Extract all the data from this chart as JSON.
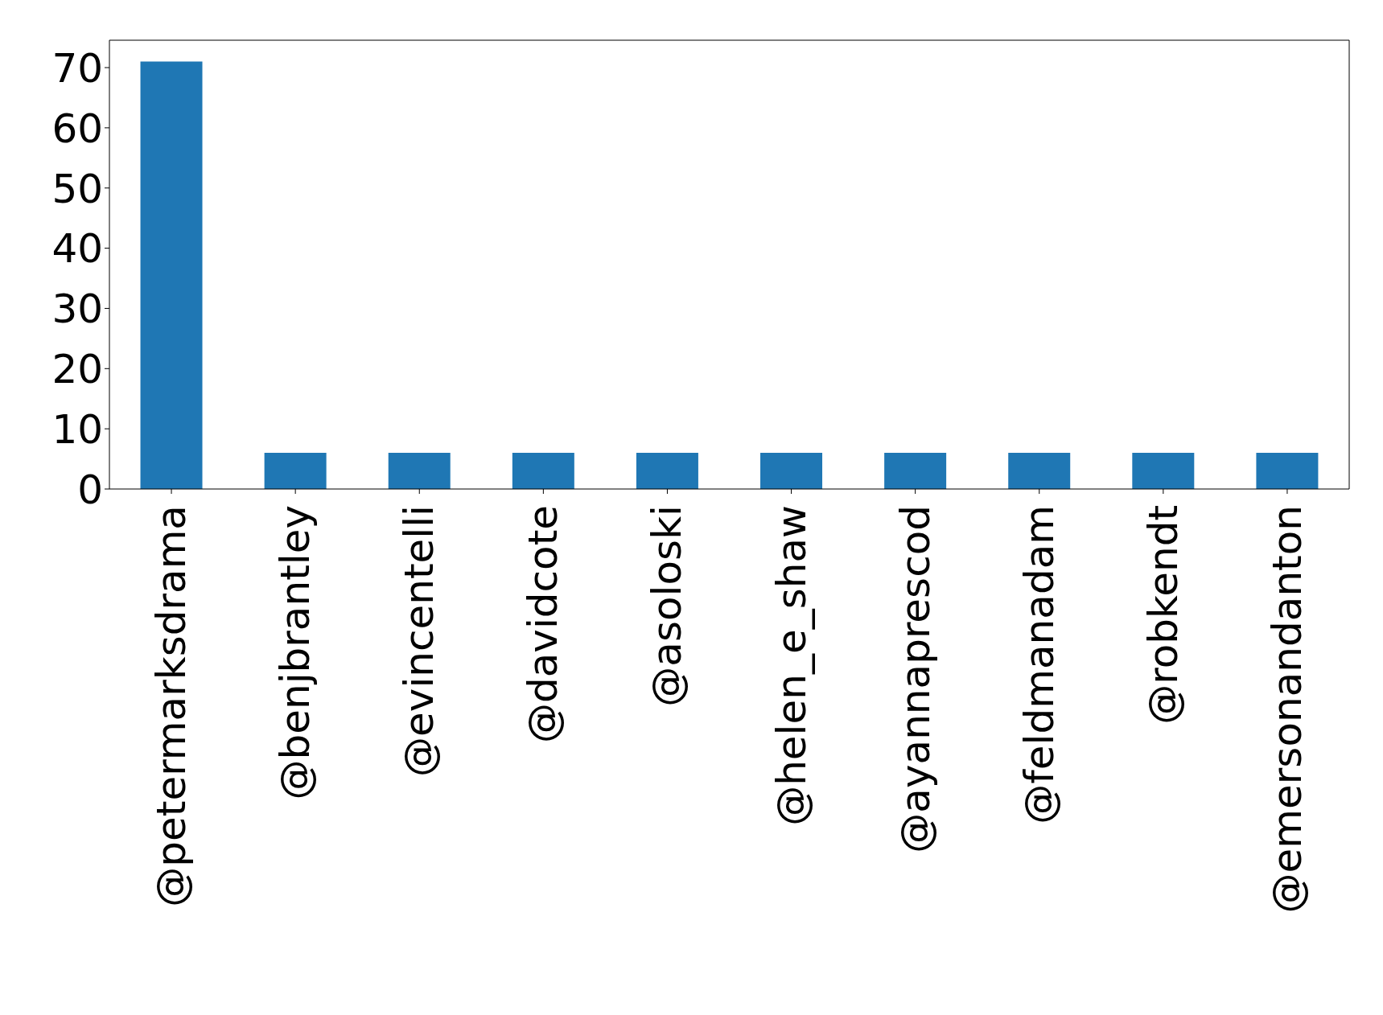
{
  "chart_data": {
    "type": "bar",
    "categories": [
      "@petermarksdrama",
      "@benjbrantley",
      "@evincentelli",
      "@davidcote",
      "@asoloski",
      "@helen_e_shaw",
      "@ayannaprescod",
      "@feldmanadam",
      "@robkendt",
      "@emersonandanton"
    ],
    "values": [
      71,
      6,
      6,
      6,
      6,
      6,
      6,
      6,
      6,
      6
    ],
    "color": "#1f77b4",
    "ylim": [
      0,
      74.55
    ],
    "yticks": [
      0,
      10,
      20,
      30,
      40,
      50,
      60,
      70
    ],
    "grid": false,
    "legend": false
  }
}
